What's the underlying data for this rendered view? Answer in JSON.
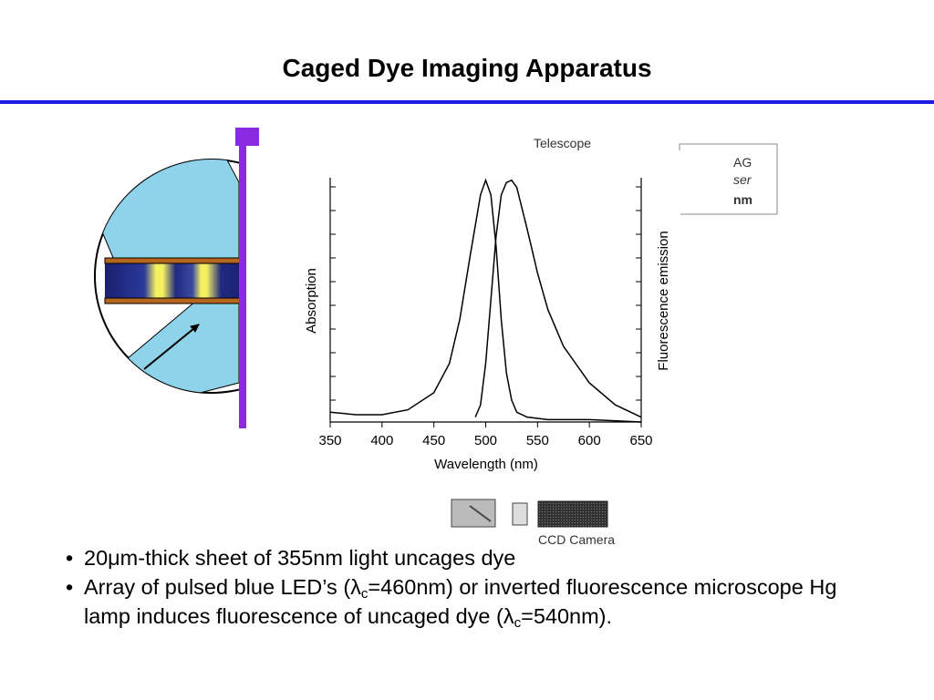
{
  "title": "Caged Dye Imaging Apparatus",
  "diagram": {
    "telescope": "Telescope",
    "laser_lines": [
      "AG",
      "ser",
      "nm"
    ],
    "camera": "CCD Camera"
  },
  "chart": {
    "type": "line",
    "x_label": "Wavelength (nm)",
    "y_label": "Absorption",
    "y2_label": "Fluorescence emission",
    "xlim": [
      350,
      650
    ],
    "xticks": [
      350,
      400,
      450,
      500,
      550,
      600,
      650
    ],
    "ylim": [
      0,
      1
    ],
    "color": "#000000",
    "series": [
      {
        "x": [
          350,
          375,
          400,
          425,
          450,
          465,
          475,
          485,
          495,
          500,
          505,
          510,
          515,
          520,
          525,
          530,
          540,
          560,
          600,
          650
        ],
        "values": [
          0.04,
          0.03,
          0.03,
          0.05,
          0.12,
          0.24,
          0.42,
          0.68,
          0.93,
          0.99,
          0.93,
          0.72,
          0.42,
          0.2,
          0.09,
          0.04,
          0.02,
          0.01,
          0.01,
          0.0
        ]
      },
      {
        "x": [
          490,
          495,
          500,
          505,
          510,
          515,
          520,
          525,
          530,
          540,
          550,
          560,
          575,
          600,
          625,
          650
        ],
        "values": [
          0.02,
          0.07,
          0.24,
          0.5,
          0.76,
          0.93,
          0.98,
          0.99,
          0.96,
          0.79,
          0.61,
          0.46,
          0.31,
          0.16,
          0.07,
          0.02
        ]
      }
    ]
  },
  "bullets": [
    [
      "20μm-thick sheet of 355nm light uncages dye"
    ],
    [
      "Array of pulsed blue LED’s (λ",
      "c",
      "=460nm) or inverted fluorescence microscope Hg lamp induces fluorescence of uncaged dye (λ",
      "c",
      "=540nm)."
    ]
  ]
}
